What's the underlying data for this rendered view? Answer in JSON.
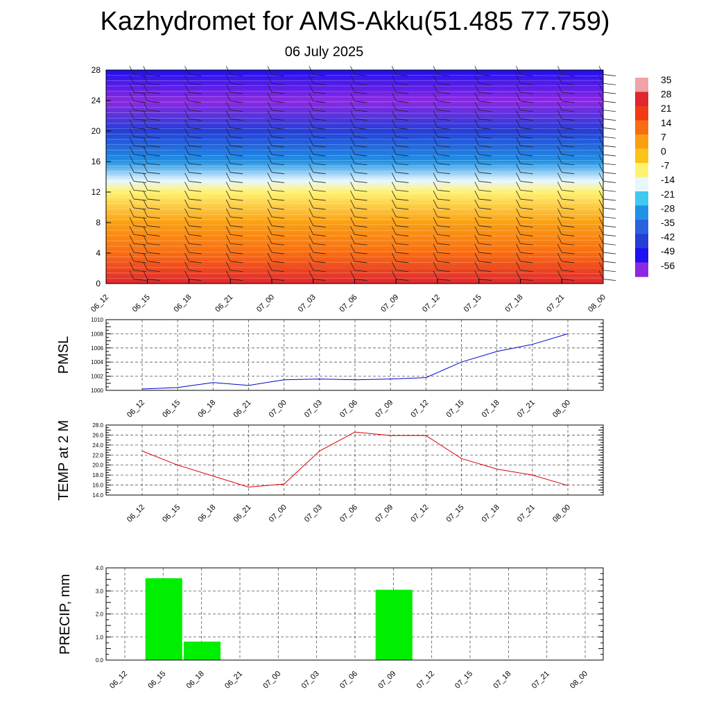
{
  "page": {
    "title": "Kazhydromet for AMS-Akku(51.485 77.759)",
    "subtitle": "06 July 2025"
  },
  "colors": {
    "pmsl_line": "#0000cc",
    "temp_line": "#dd0000",
    "precip_bar": "#00ee00",
    "grid": "#555555"
  },
  "chart_data": [
    {
      "type": "heatmap",
      "title": "",
      "x": [
        "06_12",
        "06_15",
        "06_18",
        "06_21",
        "07_00",
        "07_03",
        "07_06",
        "07_09",
        "07_12",
        "07_15",
        "07_18",
        "07_21",
        "08_00"
      ],
      "ylim": [
        0,
        28
      ],
      "y_ticks": [
        0,
        4,
        8,
        12,
        16,
        20,
        24,
        28
      ],
      "colorbar": {
        "labels": [
          "35",
          "28",
          "21",
          "14",
          "7",
          "0",
          "-7",
          "-14",
          "-21",
          "-28",
          "-35",
          "-42",
          "-49",
          "-56"
        ],
        "colors": [
          "#f2a3a8",
          "#e0262e",
          "#f23b16",
          "#f96d12",
          "#fb9f12",
          "#fcc318",
          "#fef270",
          "#e6f7ff",
          "#3fc8f0",
          "#1f92e4",
          "#2862df",
          "#243ed8",
          "#1e10f0",
          "#8c28e2"
        ]
      },
      "profile_by_level": [
        {
          "level": 0,
          "value": 28
        },
        {
          "level": 4,
          "value": 17
        },
        {
          "level": 8,
          "value": 7
        },
        {
          "level": 12,
          "value": -6
        },
        {
          "level": 13.5,
          "value": -16
        },
        {
          "level": 16,
          "value": -30
        },
        {
          "level": 20,
          "value": -45
        },
        {
          "level": 24,
          "value": -57
        },
        {
          "level": 28,
          "value": -50
        }
      ],
      "wind_barbs": true
    },
    {
      "type": "line",
      "ylabel": "PMSL",
      "x": [
        "06_12",
        "06_15",
        "06_18",
        "06_21",
        "07_00",
        "07_03",
        "07_06",
        "07_09",
        "07_12",
        "07_15",
        "07_18",
        "07_21",
        "08_00"
      ],
      "series": [
        {
          "values": [
            1000.2,
            1000.4,
            1001.1,
            1000.7,
            1001.5,
            1001.6,
            1001.5,
            1001.6,
            1001.8,
            1004.0,
            1005.5,
            1006.5,
            1008.0
          ]
        }
      ],
      "ylim": [
        1000,
        1010
      ],
      "y_ticks": [
        "1000",
        "1002",
        "1004",
        "1006",
        "1008",
        "1010"
      ],
      "grid": true
    },
    {
      "type": "line",
      "ylabel": "TEMP at 2 M",
      "x": [
        "06_12",
        "06_15",
        "06_18",
        "06_21",
        "07_00",
        "07_03",
        "07_06",
        "07_09",
        "07_12",
        "07_15",
        "07_18",
        "07_21",
        "08_00"
      ],
      "series": [
        {
          "values": [
            22.8,
            20.0,
            17.8,
            15.6,
            16.2,
            22.8,
            26.6,
            25.9,
            25.9,
            21.3,
            19.2,
            18.0,
            15.9
          ]
        }
      ],
      "ylim": [
        14,
        28
      ],
      "y_ticks": [
        "14.0",
        "16.0",
        "18.0",
        "20.0",
        "22.0",
        "24.0",
        "26.0",
        "28.0"
      ],
      "grid": true
    },
    {
      "type": "bar",
      "ylabel": "PRECIP, mm",
      "categories": [
        "06_12",
        "06_15",
        "06_18",
        "06_21",
        "07_00",
        "07_03",
        "07_06",
        "07_09",
        "07_12",
        "07_15",
        "07_18",
        "07_21",
        "08_00"
      ],
      "values": [
        0,
        3.55,
        0.8,
        0,
        0,
        0,
        0,
        3.05,
        0,
        0,
        0,
        0,
        0
      ],
      "ylim": [
        0,
        4
      ],
      "y_ticks": [
        "0.0",
        "1.0",
        "2.0",
        "3.0",
        "4.0"
      ],
      "grid": true
    }
  ]
}
